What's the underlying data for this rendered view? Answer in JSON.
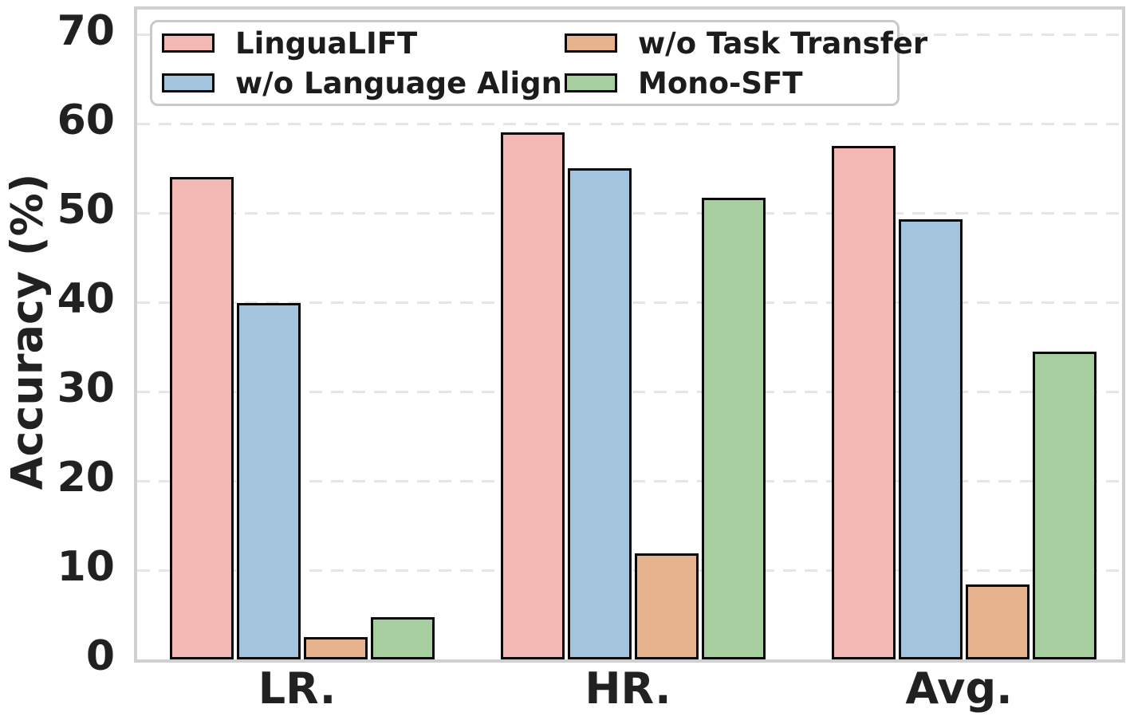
{
  "chart_data": {
    "type": "bar",
    "title": "",
    "xlabel": "",
    "ylabel": "Accuracy (%)",
    "categories": [
      "LR.",
      "HR.",
      "Avg."
    ],
    "series": [
      {
        "name": "LinguaLIFT",
        "color": "#f3b7b4",
        "values": [
          54.0,
          59.0,
          57.5
        ]
      },
      {
        "name": "w/o Language Align",
        "color": "#a4c3dc",
        "values": [
          39.9,
          55.0,
          49.3
        ]
      },
      {
        "name": "w/o Task Transfer",
        "color": "#e6b38e",
        "values": [
          2.5,
          11.9,
          8.4
        ]
      },
      {
        "name": "Mono-SFT",
        "color": "#a6ce9f",
        "values": [
          4.7,
          51.7,
          34.5
        ]
      }
    ],
    "yticks": [
      0,
      10,
      20,
      30,
      40,
      50,
      60,
      70
    ],
    "ylim": [
      0,
      72.8
    ],
    "grid": "horizontal-dashed",
    "legend": {
      "position": "upper-left",
      "columns": 2,
      "row_major_display": [
        "LinguaLIFT",
        "w/o Task Transfer",
        "w/o Language Align",
        "Mono-SFT"
      ]
    },
    "bar_edge_color": "#0a0a0a",
    "text_color": "#212121",
    "grid_color": "#e6e6e6",
    "spine_color": "#d0d0d0"
  }
}
